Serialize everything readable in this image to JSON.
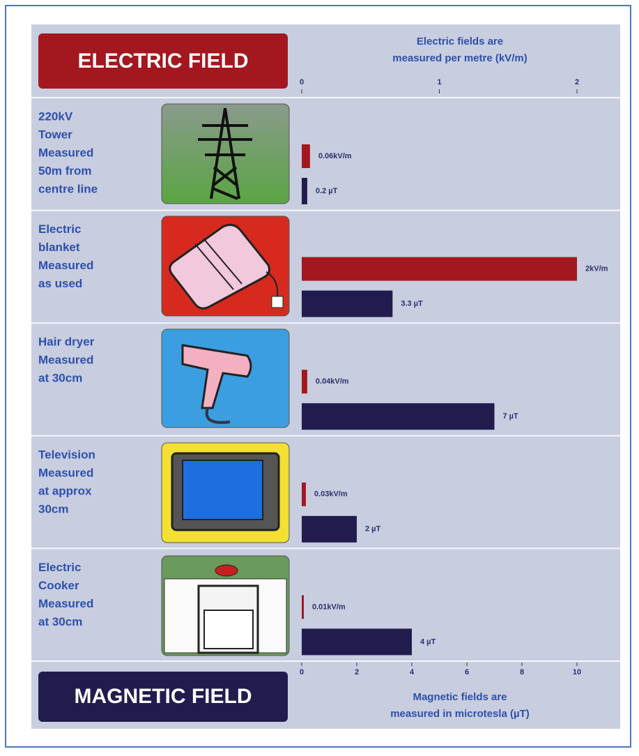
{
  "chart_data": {
    "type": "paired-hbar",
    "title": "ELECTRIC FIELD",
    "subtitle": "MAGNETIC FIELD",
    "xlabel": [
      "Electric fields are",
      "measured per metre (kV/m)"
    ],
    "x2label": [
      "Magnetic fields are",
      "measured in microtesla (µT)"
    ],
    "categories": [
      [
        "220kV",
        "Tower",
        "Measured",
        "50m from",
        "centre line"
      ],
      [
        "Electric",
        "blanket",
        "Measured",
        "as used"
      ],
      [
        "Hair dryer",
        "Measured",
        "at 30cm"
      ],
      [
        "Television",
        "Measured",
        "at approx",
        "30cm"
      ],
      [
        "Electric",
        "Cooker",
        "Measured",
        "at 30cm"
      ]
    ],
    "series": [
      {
        "name": "ELECTRIC FIELD",
        "color": "#a3171f",
        "axis": "x",
        "values": [
          0.06,
          2,
          0.04,
          0.03,
          0.01
        ],
        "value_labels": [
          "0.06kV/m",
          "2kV/m",
          "0.04kV/m",
          "0.03kV/m",
          "0.01kV/m"
        ]
      },
      {
        "name": "MAGNETIC FIELD",
        "color": "#221c4e",
        "axis": "x2",
        "values": [
          0.2,
          3.3,
          7,
          2,
          4
        ],
        "value_labels": [
          "0.2 µT",
          "3.3 µT",
          "7 µT",
          "2 µT",
          "4 µT"
        ]
      }
    ],
    "xlim": [
      0,
      2
    ],
    "xticks": [
      0,
      1,
      2
    ],
    "x2lim": [
      0,
      10
    ],
    "x2ticks": [
      0,
      2,
      4,
      6,
      8,
      10
    ]
  }
}
